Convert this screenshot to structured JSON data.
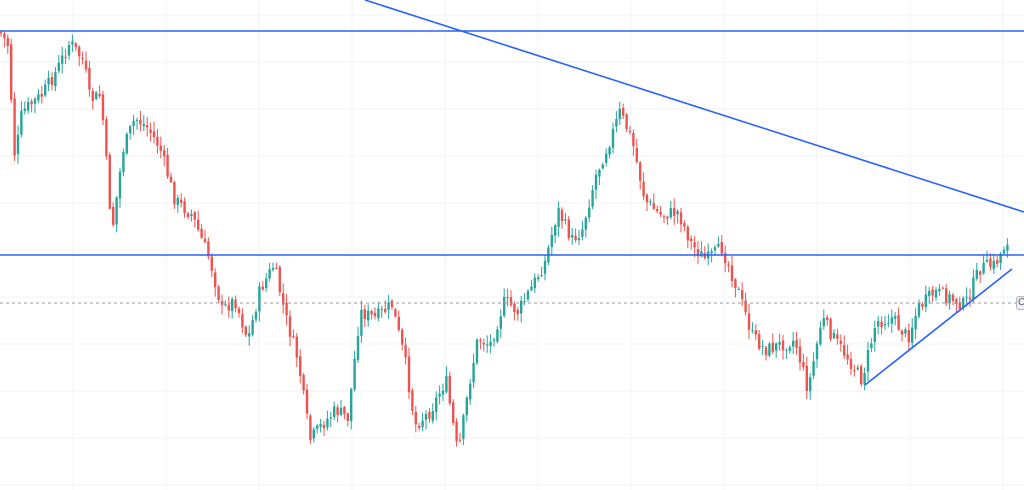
{
  "chart_data": {
    "type": "candlestick",
    "title": "",
    "xlabel": "",
    "ylabel": "",
    "grid": true,
    "legend": "none",
    "ylim": [
      0,
      490
    ],
    "up_color": "#26a69a",
    "down_color": "#ef5350",
    "line_color": "#2962ff",
    "last_price_line_color": "#9598a1",
    "anchors": [
      [
        0,
        32
      ],
      [
        8,
        45
      ],
      [
        15,
        160
      ],
      [
        22,
        112
      ],
      [
        30,
        105
      ],
      [
        42,
        95
      ],
      [
        56,
        72
      ],
      [
        70,
        42
      ],
      [
        84,
        62
      ],
      [
        90,
        100
      ],
      [
        101,
        95
      ],
      [
        112,
        232
      ],
      [
        123,
        150
      ],
      [
        135,
        118
      ],
      [
        148,
        128
      ],
      [
        160,
        148
      ],
      [
        175,
        200
      ],
      [
        192,
        215
      ],
      [
        210,
        260
      ],
      [
        222,
        310
      ],
      [
        235,
        300
      ],
      [
        248,
        340
      ],
      [
        260,
        290
      ],
      [
        274,
        265
      ],
      [
        286,
        318
      ],
      [
        298,
        360
      ],
      [
        310,
        440
      ],
      [
        322,
        425
      ],
      [
        336,
        410
      ],
      [
        348,
        418
      ],
      [
        360,
        312
      ],
      [
        375,
        318
      ],
      [
        392,
        305
      ],
      [
        405,
        360
      ],
      [
        415,
        425
      ],
      [
        430,
        412
      ],
      [
        446,
        380
      ],
      [
        458,
        455
      ],
      [
        470,
        380
      ],
      [
        478,
        338
      ],
      [
        490,
        345
      ],
      [
        505,
        300
      ],
      [
        518,
        312
      ],
      [
        533,
        285
      ],
      [
        545,
        262
      ],
      [
        558,
        210
      ],
      [
        572,
        240
      ],
      [
        582,
        230
      ],
      [
        596,
        175
      ],
      [
        610,
        140
      ],
      [
        620,
        112
      ],
      [
        632,
        140
      ],
      [
        645,
        200
      ],
      [
        660,
        215
      ],
      [
        678,
        212
      ],
      [
        692,
        245
      ],
      [
        706,
        260
      ],
      [
        722,
        248
      ],
      [
        738,
        290
      ],
      [
        752,
        335
      ],
      [
        765,
        350
      ],
      [
        780,
        345
      ],
      [
        795,
        340
      ],
      [
        808,
        390
      ],
      [
        822,
        318
      ],
      [
        835,
        340
      ],
      [
        848,
        358
      ],
      [
        862,
        380
      ],
      [
        876,
        322
      ],
      [
        892,
        318
      ],
      [
        908,
        338
      ],
      [
        918,
        308
      ],
      [
        935,
        292
      ],
      [
        950,
        298
      ],
      [
        965,
        305
      ],
      [
        980,
        268
      ],
      [
        995,
        265
      ],
      [
        1010,
        235
      ]
    ],
    "horizontal_levels": [
      31,
      255
    ],
    "last_price_level": 303,
    "trendlines": [
      {
        "from": [
          365,
          0
        ],
        "to": [
          1024,
          212
        ]
      },
      {
        "from": [
          865,
          385
        ],
        "to": [
          1012,
          269
        ]
      }
    ]
  },
  "price_tag": {
    "text": "C"
  }
}
